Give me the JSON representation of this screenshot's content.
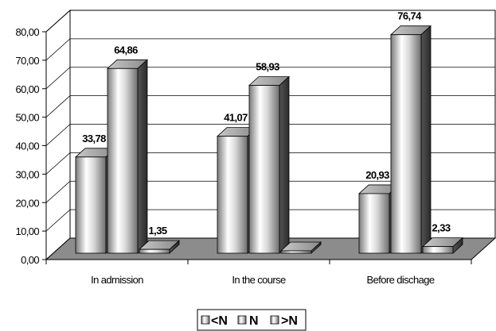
{
  "chart_data": {
    "type": "bar",
    "categories": [
      "In admission",
      "In the course",
      "Before dischage"
    ],
    "series": [
      {
        "name": "<N",
        "values": [
          33.78,
          41.07,
          20.93
        ],
        "labels": [
          "33,78",
          "41,07",
          "20,93"
        ]
      },
      {
        "name": "N",
        "values": [
          64.86,
          58.93,
          76.74
        ],
        "labels": [
          "64,86",
          "58,93",
          "76,74"
        ]
      },
      {
        "name": ">N",
        "values": [
          1.35,
          0,
          2.33
        ],
        "labels": [
          "1,35",
          "",
          "2,33"
        ]
      }
    ],
    "ylim": [
      0,
      80
    ],
    "y_ticks": [
      "0,00",
      "10,00",
      "20,00",
      "30,00",
      "40,00",
      "50,00",
      "60,00",
      "70,00",
      "80,00"
    ],
    "grid": true,
    "legend_position": "bottom-center",
    "colors": {
      "bar_light": "#ffffff",
      "bar_mid": "#a8a8a8",
      "bar_dark": "#3a3a3a",
      "floor": "#8c8c8c",
      "axis": "#000000"
    }
  }
}
